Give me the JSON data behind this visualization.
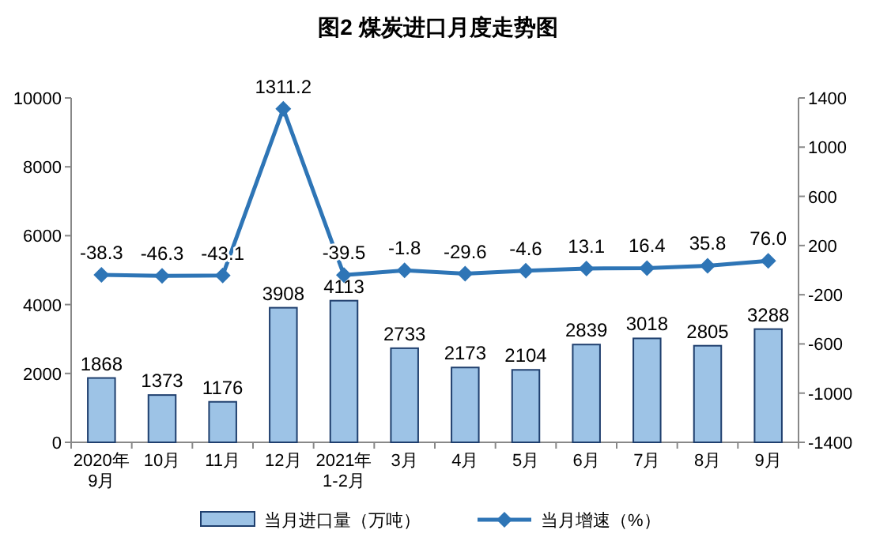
{
  "chart_data": {
    "type": "bar",
    "title": "图2 煤炭进口月度走势图",
    "categories": [
      "2020年\n9月",
      "10月",
      "11月",
      "12月",
      "2021年\n1-2月",
      "3月",
      "4月",
      "5月",
      "6月",
      "7月",
      "8月",
      "9月"
    ],
    "series": [
      {
        "name": "当月进口量（万吨）",
        "color": "#9dc3e6",
        "values": [
          1868,
          1373,
          1176,
          3908,
          4113,
          2733,
          2173,
          2104,
          2839,
          3018,
          2805,
          3288
        ]
      },
      {
        "name": "当月增速（%）",
        "type": "line",
        "axis": "y2",
        "color": "#2e75b6",
        "values": [
          -38.3,
          -46.3,
          -43.1,
          1311.2,
          -39.5,
          -1.8,
          -29.6,
          -4.6,
          13.1,
          16.4,
          35.8,
          76.0
        ],
        "value_labels": [
          "-38.3",
          "-46.3",
          "-43.1",
          "1311.2",
          "-39.5",
          "-1.8",
          "-29.6",
          "-4.6",
          "13.1",
          "16.4",
          "35.8",
          "76.0"
        ]
      }
    ],
    "ylim": [
      0,
      10000
    ],
    "yticks": [
      0,
      2000,
      4000,
      6000,
      8000,
      10000
    ],
    "y2lim": [
      -1400,
      1400
    ],
    "y2ticks": [
      -1400,
      -1000,
      -600,
      -200,
      200,
      600,
      1000,
      1400
    ],
    "data_labels": true,
    "legend": "bottom",
    "marker": "diamond",
    "grid": false
  }
}
